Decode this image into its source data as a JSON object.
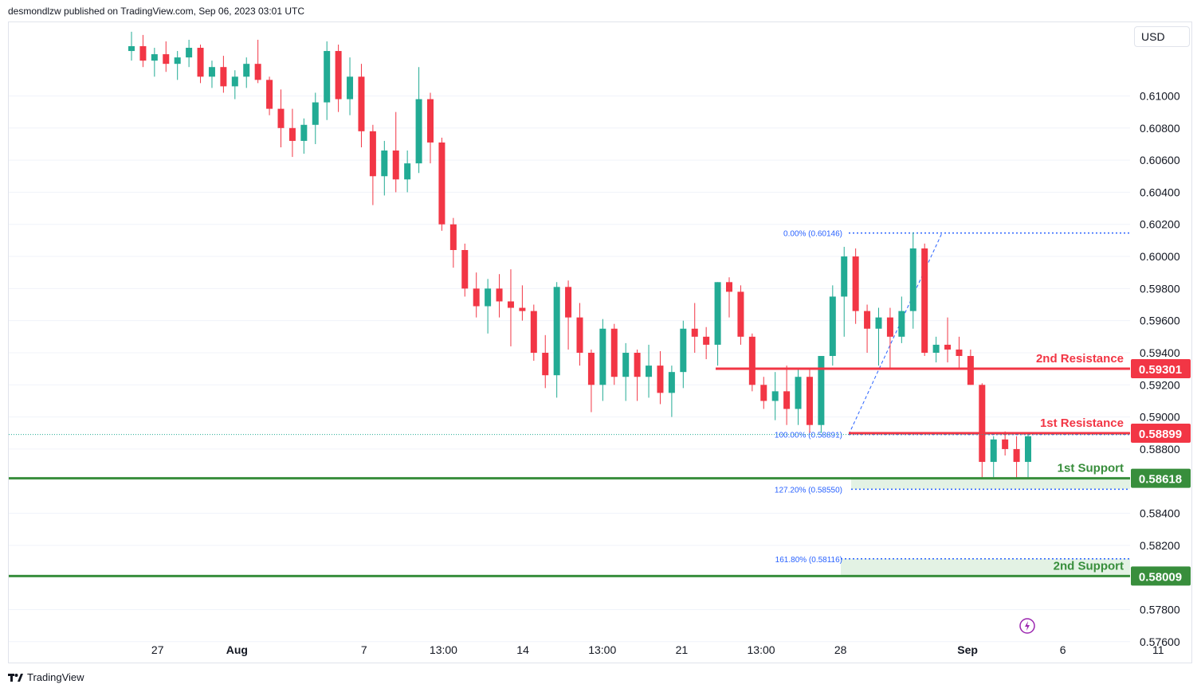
{
  "header": {
    "text": "desmondlzw published on TradingView.com, Sep 06, 2023 03:01 UTC"
  },
  "currency": "USD",
  "footer": {
    "brand": "TradingView",
    "logo_icon": "tradingview-logo-icon"
  },
  "colors": {
    "up": "#22ab94",
    "down": "#f23645",
    "resistance": "#f23645",
    "support": "#388e3c",
    "support_zone": "#e3f2e4",
    "fib": "#2962ff",
    "grid": "#f0f3fa",
    "text": "#131722"
  },
  "chart_data": {
    "type": "candlestick",
    "y_axis": {
      "range": [
        0.5748,
        0.6131
      ],
      "ticks": [
        "0.61000",
        "0.60800",
        "0.60600",
        "0.60400",
        "0.60200",
        "0.60000",
        "0.59800",
        "0.59600",
        "0.59400",
        "0.59200",
        "0.59000",
        "0.58800",
        "0.58400",
        "0.58200",
        "0.57800",
        "0.57600"
      ]
    },
    "x_axis": {
      "ticks": [
        {
          "label": "27",
          "i": 4,
          "bold": false
        },
        {
          "label": "Aug",
          "i": 9,
          "bold": true
        },
        {
          "label": "7",
          "i": 17,
          "bold": false
        },
        {
          "label": "13:00",
          "i": 22,
          "bold": false
        },
        {
          "label": "14",
          "i": 27,
          "bold": false
        },
        {
          "label": "13:00",
          "i": 32,
          "bold": false
        },
        {
          "label": "21",
          "i": 37,
          "bold": false
        },
        {
          "label": "13:00",
          "i": 42,
          "bold": false
        },
        {
          "label": "28",
          "i": 47,
          "bold": false
        },
        {
          "label": "Sep",
          "i": 55,
          "bold": true
        },
        {
          "label": "6",
          "i": 61,
          "bold": false
        },
        {
          "label": "11",
          "i": 67,
          "bold": false
        }
      ]
    },
    "candles": [
      [
        0.6128,
        0.614,
        0.6122,
        0.6131
      ],
      [
        0.6131,
        0.6138,
        0.6118,
        0.6122
      ],
      [
        0.6122,
        0.613,
        0.6112,
        0.6126
      ],
      [
        0.6126,
        0.6134,
        0.6115,
        0.612
      ],
      [
        0.612,
        0.6128,
        0.611,
        0.6124
      ],
      [
        0.6124,
        0.6135,
        0.6118,
        0.613
      ],
      [
        0.613,
        0.6132,
        0.6108,
        0.6112
      ],
      [
        0.6112,
        0.6122,
        0.6105,
        0.6118
      ],
      [
        0.6118,
        0.6125,
        0.6102,
        0.6106
      ],
      [
        0.6106,
        0.6116,
        0.6098,
        0.6112
      ],
      [
        0.6112,
        0.6124,
        0.6105,
        0.612
      ],
      [
        0.612,
        0.6135,
        0.6108,
        0.611
      ],
      [
        0.611,
        0.6112,
        0.6088,
        0.6092
      ],
      [
        0.6092,
        0.6104,
        0.6068,
        0.608
      ],
      [
        0.608,
        0.6092,
        0.6062,
        0.6072
      ],
      [
        0.6072,
        0.6086,
        0.6064,
        0.6082
      ],
      [
        0.6082,
        0.6102,
        0.607,
        0.6096
      ],
      [
        0.6096,
        0.6134,
        0.6085,
        0.6128
      ],
      [
        0.6128,
        0.6132,
        0.609,
        0.6098
      ],
      [
        0.6098,
        0.6124,
        0.6088,
        0.6112
      ],
      [
        0.6112,
        0.612,
        0.6068,
        0.6078
      ],
      [
        0.6078,
        0.6082,
        0.6032,
        0.605
      ],
      [
        0.605,
        0.6072,
        0.6038,
        0.6066
      ],
      [
        0.6066,
        0.609,
        0.604,
        0.6048
      ],
      [
        0.6048,
        0.6066,
        0.604,
        0.6058
      ],
      [
        0.6058,
        0.6118,
        0.6052,
        0.6098
      ],
      [
        0.6098,
        0.6102,
        0.6058,
        0.6071
      ],
      [
        0.6071,
        0.6074,
        0.6016,
        0.602
      ],
      [
        0.602,
        0.6024,
        0.5993,
        0.6004
      ],
      [
        0.6004,
        0.6008,
        0.5975,
        0.598
      ],
      [
        0.598,
        0.599,
        0.5962,
        0.5969
      ],
      [
        0.5969,
        0.5986,
        0.5952,
        0.598
      ],
      [
        0.598,
        0.5989,
        0.5962,
        0.5972
      ],
      [
        0.5972,
        0.5992,
        0.5944,
        0.5968
      ],
      [
        0.5968,
        0.5982,
        0.596,
        0.5966
      ],
      [
        0.5966,
        0.597,
        0.5935,
        0.594
      ],
      [
        0.594,
        0.5951,
        0.5918,
        0.5926
      ],
      [
        0.5926,
        0.5984,
        0.5912,
        0.5981
      ],
      [
        0.5981,
        0.5985,
        0.5942,
        0.5962
      ],
      [
        0.5962,
        0.5971,
        0.5932,
        0.594
      ],
      [
        0.594,
        0.5942,
        0.5903,
        0.592
      ],
      [
        0.592,
        0.5961,
        0.591,
        0.5955
      ],
      [
        0.5955,
        0.5958,
        0.592,
        0.5925
      ],
      [
        0.5925,
        0.5946,
        0.591,
        0.594
      ],
      [
        0.594,
        0.5942,
        0.591,
        0.5925
      ],
      [
        0.5925,
        0.5945,
        0.5912,
        0.5932
      ],
      [
        0.5932,
        0.5941,
        0.5908,
        0.5915
      ],
      [
        0.5915,
        0.5932,
        0.59,
        0.5928
      ],
      [
        0.5928,
        0.596,
        0.5918,
        0.5955
      ],
      [
        0.5955,
        0.5971,
        0.594,
        0.595
      ],
      [
        0.595,
        0.5956,
        0.5936,
        0.5945
      ],
      [
        0.5945,
        0.5984,
        0.5932,
        0.5984
      ],
      [
        0.5984,
        0.5987,
        0.5962,
        0.5978
      ],
      [
        0.5978,
        0.5982,
        0.5945,
        0.595
      ],
      [
        0.595,
        0.5952,
        0.5916,
        0.592
      ],
      [
        0.592,
        0.5925,
        0.5905,
        0.591
      ],
      [
        0.591,
        0.5928,
        0.5898,
        0.5916
      ],
      [
        0.5916,
        0.5932,
        0.5895,
        0.5905
      ],
      [
        0.5905,
        0.593,
        0.5895,
        0.5925
      ],
      [
        0.5925,
        0.593,
        0.589,
        0.5895
      ]
    ],
    "candles_late": [
      [
        0.5895,
        0.5938,
        0.589,
        0.5938
      ],
      [
        0.5938,
        0.5982,
        0.5932,
        0.5975
      ],
      [
        0.5975,
        0.6006,
        0.595,
        0.6
      ],
      [
        0.6,
        0.6005,
        0.5958,
        0.5966
      ],
      [
        0.5966,
        0.597,
        0.594,
        0.5955
      ],
      [
        0.5955,
        0.5968,
        0.5932,
        0.5962
      ],
      [
        0.5962,
        0.5968,
        0.593,
        0.595
      ],
      [
        0.595,
        0.5975,
        0.5946,
        0.5966
      ],
      [
        0.5966,
        0.6015,
        0.5955,
        0.6005
      ],
      [
        0.6005,
        0.6008,
        0.5938,
        0.594
      ],
      [
        0.594,
        0.595,
        0.5934,
        0.5945
      ],
      [
        0.5945,
        0.5962,
        0.5934,
        0.5942
      ],
      [
        0.5942,
        0.595,
        0.593,
        0.5938
      ],
      [
        0.5938,
        0.5942,
        0.592,
        0.592
      ],
      [
        0.592,
        0.5921,
        0.5862,
        0.5872
      ],
      [
        0.5872,
        0.5888,
        0.5862,
        0.5886
      ],
      [
        0.5886,
        0.5891,
        0.5876,
        0.588
      ],
      [
        0.588,
        0.5888,
        0.5862,
        0.5872
      ],
      [
        0.5872,
        0.589,
        0.5862,
        0.5888
      ]
    ],
    "levels": [
      {
        "name": "2nd Resistance",
        "value": 0.59301,
        "label": "0.59301",
        "kind": "resistance"
      },
      {
        "name": "1st Resistance",
        "value": 0.58899,
        "label": "0.58899",
        "kind": "resistance"
      },
      {
        "name": "1st Support",
        "value": 0.58618,
        "label": "0.58618",
        "kind": "support"
      },
      {
        "name": "2nd Support",
        "value": 0.58009,
        "label": "0.58009",
        "kind": "support"
      }
    ],
    "fib": [
      {
        "label": "0.00% (0.60146)",
        "value": 0.60146
      },
      {
        "label": "100.00% (0.58891)",
        "value": 0.58891
      },
      {
        "label": "127.20% (0.58550)",
        "value": 0.5855
      },
      {
        "label": "161.80% (0.58116)",
        "value": 0.58116
      }
    ],
    "last_price": 0.58891
  }
}
